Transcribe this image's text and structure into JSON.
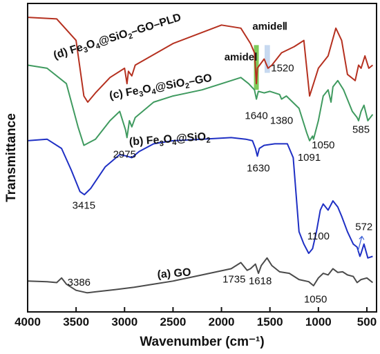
{
  "chart_data": {
    "type": "line",
    "xlabel": "Wavenumber (cm⁻¹)",
    "ylabel": "Transmittance",
    "xlim": [
      4000,
      400
    ],
    "x_reversed": true,
    "y_ticks_shown": false,
    "grid": false,
    "xticks": [
      4000,
      3500,
      3000,
      2500,
      2000,
      1500,
      1000,
      500
    ],
    "series": [
      {
        "key": "d",
        "label": "(d) Fe3O4@SiO2-GO-PLD",
        "color": "#b5301f",
        "points": [
          [
            4000,
            0.955
          ],
          [
            3700,
            0.95
          ],
          [
            3500,
            0.88
          ],
          [
            3420,
            0.7
          ],
          [
            3380,
            0.68
          ],
          [
            3300,
            0.71
          ],
          [
            3150,
            0.76
          ],
          [
            3000,
            0.79
          ],
          [
            2975,
            0.74
          ],
          [
            2960,
            0.78
          ],
          [
            2925,
            0.765
          ],
          [
            2890,
            0.8
          ],
          [
            2500,
            0.87
          ],
          [
            2000,
            0.93
          ],
          [
            1800,
            0.92
          ],
          [
            1700,
            0.87
          ],
          [
            1660,
            0.84
          ],
          [
            1640,
            0.74
          ],
          [
            1630,
            0.79
          ],
          [
            1560,
            0.82
          ],
          [
            1520,
            0.79
          ],
          [
            1480,
            0.8
          ],
          [
            1380,
            0.84
          ],
          [
            1250,
            0.86
          ],
          [
            1150,
            0.88
          ],
          [
            1091,
            0.7
          ],
          [
            1050,
            0.74
          ],
          [
            1000,
            0.79
          ],
          [
            900,
            0.83
          ],
          [
            820,
            0.92
          ],
          [
            760,
            0.88
          ],
          [
            700,
            0.77
          ],
          [
            620,
            0.75
          ],
          [
            585,
            0.8
          ],
          [
            560,
            0.79
          ],
          [
            520,
            0.83
          ],
          [
            480,
            0.79
          ],
          [
            440,
            0.8
          ]
        ]
      },
      {
        "key": "c",
        "label": "(c) Fe3O4@SiO2-GO",
        "color": "#3f9a5f",
        "points": [
          [
            4000,
            0.8
          ],
          [
            3800,
            0.79
          ],
          [
            3600,
            0.74
          ],
          [
            3480,
            0.6
          ],
          [
            3420,
            0.54
          ],
          [
            3300,
            0.56
          ],
          [
            3150,
            0.62
          ],
          [
            3050,
            0.65
          ],
          [
            2990,
            0.59
          ],
          [
            2975,
            0.565
          ],
          [
            2950,
            0.62
          ],
          [
            2925,
            0.6
          ],
          [
            2890,
            0.63
          ],
          [
            2700,
            0.68
          ],
          [
            2500,
            0.7
          ],
          [
            2200,
            0.72
          ],
          [
            1900,
            0.75
          ],
          [
            1800,
            0.76
          ],
          [
            1720,
            0.74
          ],
          [
            1660,
            0.72
          ],
          [
            1640,
            0.69
          ],
          [
            1620,
            0.715
          ],
          [
            1560,
            0.71
          ],
          [
            1500,
            0.715
          ],
          [
            1400,
            0.705
          ],
          [
            1380,
            0.69
          ],
          [
            1330,
            0.7
          ],
          [
            1200,
            0.66
          ],
          [
            1120,
            0.58
          ],
          [
            1091,
            0.555
          ],
          [
            1060,
            0.57
          ],
          [
            1050,
            0.56
          ],
          [
            1000,
            0.62
          ],
          [
            950,
            0.7
          ],
          [
            900,
            0.72
          ],
          [
            870,
            0.68
          ],
          [
            850,
            0.73
          ],
          [
            800,
            0.75
          ],
          [
            740,
            0.72
          ],
          [
            650,
            0.65
          ],
          [
            600,
            0.63
          ],
          [
            585,
            0.62
          ],
          [
            560,
            0.65
          ],
          [
            530,
            0.67
          ],
          [
            490,
            0.62
          ],
          [
            440,
            0.64
          ]
        ]
      },
      {
        "key": "b",
        "label": "(b) Fe3O4@SiO2",
        "color": "#1e2fc4",
        "points": [
          [
            4000,
            0.555
          ],
          [
            3800,
            0.56
          ],
          [
            3650,
            0.53
          ],
          [
            3550,
            0.46
          ],
          [
            3460,
            0.39
          ],
          [
            3415,
            0.38
          ],
          [
            3350,
            0.4
          ],
          [
            3200,
            0.47
          ],
          [
            3050,
            0.51
          ],
          [
            2975,
            0.505
          ],
          [
            2925,
            0.5
          ],
          [
            2850,
            0.52
          ],
          [
            2700,
            0.545
          ],
          [
            2500,
            0.555
          ],
          [
            2200,
            0.56
          ],
          [
            1900,
            0.565
          ],
          [
            1750,
            0.56
          ],
          [
            1680,
            0.555
          ],
          [
            1650,
            0.53
          ],
          [
            1630,
            0.505
          ],
          [
            1610,
            0.53
          ],
          [
            1560,
            0.54
          ],
          [
            1450,
            0.545
          ],
          [
            1320,
            0.545
          ],
          [
            1260,
            0.5
          ],
          [
            1200,
            0.26
          ],
          [
            1150,
            0.22
          ],
          [
            1100,
            0.19
          ],
          [
            1060,
            0.205
          ],
          [
            1020,
            0.26
          ],
          [
            980,
            0.33
          ],
          [
            950,
            0.35
          ],
          [
            900,
            0.33
          ],
          [
            850,
            0.36
          ],
          [
            800,
            0.34
          ],
          [
            760,
            0.31
          ],
          [
            700,
            0.26
          ],
          [
            640,
            0.22
          ],
          [
            600,
            0.21
          ],
          [
            572,
            0.18
          ],
          [
            560,
            0.19
          ],
          [
            530,
            0.22
          ],
          [
            490,
            0.175
          ],
          [
            440,
            0.18
          ]
        ]
      },
      {
        "key": "a",
        "label": "(a) GO",
        "color": "#4a4a4a",
        "points": [
          [
            4000,
            0.1
          ],
          [
            3800,
            0.098
          ],
          [
            3700,
            0.095
          ],
          [
            3650,
            0.11
          ],
          [
            3600,
            0.09
          ],
          [
            3500,
            0.07
          ],
          [
            3386,
            0.062
          ],
          [
            3300,
            0.065
          ],
          [
            3100,
            0.072
          ],
          [
            2900,
            0.08
          ],
          [
            2700,
            0.09
          ],
          [
            2500,
            0.1
          ],
          [
            2200,
            0.12
          ],
          [
            1900,
            0.14
          ],
          [
            1800,
            0.16
          ],
          [
            1735,
            0.135
          ],
          [
            1700,
            0.14
          ],
          [
            1650,
            0.155
          ],
          [
            1618,
            0.125
          ],
          [
            1590,
            0.15
          ],
          [
            1530,
            0.175
          ],
          [
            1480,
            0.15
          ],
          [
            1400,
            0.13
          ],
          [
            1300,
            0.125
          ],
          [
            1200,
            0.105
          ],
          [
            1100,
            0.098
          ],
          [
            1050,
            0.085
          ],
          [
            1000,
            0.11
          ],
          [
            950,
            0.125
          ],
          [
            900,
            0.12
          ],
          [
            850,
            0.14
          ],
          [
            800,
            0.128
          ],
          [
            750,
            0.13
          ],
          [
            700,
            0.12
          ],
          [
            640,
            0.115
          ],
          [
            600,
            0.095
          ],
          [
            560,
            0.105
          ],
          [
            500,
            0.11
          ],
          [
            440,
            0.095
          ]
        ]
      }
    ],
    "series_labels": {
      "d": {
        "prefix": "(d) Fe",
        "s1": "3",
        "m1": "O",
        "s2": "4",
        "m2": "@SiO",
        "s3": "2",
        "tail": "–GO–PLD"
      },
      "c": {
        "prefix": "(c) Fe",
        "s1": "3",
        "m1": "O",
        "s2": "4",
        "m2": "@SiO",
        "s3": "2",
        "tail": "–GO"
      },
      "b": {
        "prefix": "(b) Fe",
        "s1": "3",
        "m1": "O",
        "s2": "4",
        "m2": "@SiO",
        "s3": "2",
        "tail": ""
      },
      "a": {
        "text": "(a) GO"
      }
    },
    "annotations": [
      {
        "text": "3415",
        "x": 3420,
        "y": 0.335
      },
      {
        "text": "2975",
        "x": 3000,
        "y": 0.5
      },
      {
        "text": "1630",
        "x": 1620,
        "y": 0.455
      },
      {
        "text": "1640",
        "x": 1640,
        "y": 0.625
      },
      {
        "text": "1380",
        "x": 1380,
        "y": 0.61
      },
      {
        "text": "1091",
        "x": 1095,
        "y": 0.49
      },
      {
        "text": "1050",
        "x": 950,
        "y": 0.53
      },
      {
        "text": "585",
        "x": 560,
        "y": 0.58
      },
      {
        "text": "572",
        "x": 530,
        "y": 0.265
      },
      {
        "text": "1100",
        "x": 1000,
        "y": 0.235
      },
      {
        "text": "1520",
        "x": 1370,
        "y": 0.78
      },
      {
        "text": "3386",
        "x": 3470,
        "y": 0.085
      },
      {
        "text": "1735",
        "x": 1870,
        "y": 0.095
      },
      {
        "text": "1618",
        "x": 1600,
        "y": 0.09
      },
      {
        "text": "1050",
        "x": 1030,
        "y": 0.03
      }
    ],
    "bold_annotations": [
      {
        "text": "amideⅠ",
        "x": 1800,
        "y": 0.815
      },
      {
        "text": "amideⅡ",
        "x": 1500,
        "y": 0.915
      }
    ],
    "highlight_bands": [
      {
        "x_from": 1665,
        "x_to": 1615,
        "color": "#7ecb5a",
        "y_from": 0.72,
        "y_to": 0.865
      },
      {
        "x_from": 1555,
        "x_to": 1500,
        "color": "#c7d9f0",
        "y_from": 0.775,
        "y_to": 0.865
      }
    ]
  }
}
